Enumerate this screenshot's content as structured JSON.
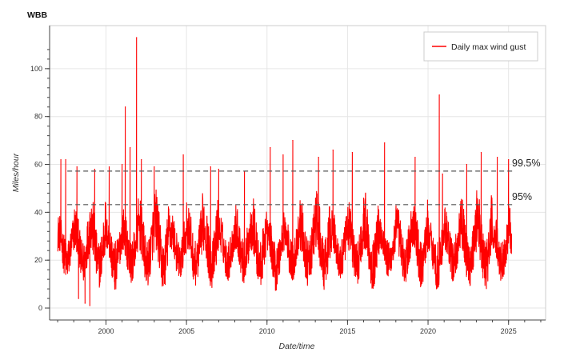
{
  "chart_data": {
    "type": "line",
    "title": "WBB",
    "xlabel": "Date/time",
    "ylabel": "Miles/hour",
    "xlim": [
      1996.5,
      2027.3
    ],
    "ylim": [
      -5,
      118
    ],
    "x_ticks": [
      2000,
      2005,
      2010,
      2015,
      2020,
      2025
    ],
    "y_ticks": [
      0,
      20,
      40,
      60,
      80,
      100
    ],
    "grid": true,
    "legend_position": "top-right",
    "series": [
      {
        "name": "Daily max wind gust",
        "color": "#ff0000",
        "x_start": 1997.0,
        "x_end": 2025.2,
        "seasonal_low_range": [
          7,
          12
        ],
        "seasonal_high_range": [
          38,
          52
        ],
        "peaks": [
          {
            "x": 1997.2,
            "y": 62
          },
          {
            "x": 1997.5,
            "y": 62
          },
          {
            "x": 1998.2,
            "y": 59
          },
          {
            "x": 1998.3,
            "y": 4
          },
          {
            "x": 1998.7,
            "y": 2
          },
          {
            "x": 1999.0,
            "y": 1
          },
          {
            "x": 1999.3,
            "y": 58
          },
          {
            "x": 2000.2,
            "y": 59
          },
          {
            "x": 2001.0,
            "y": 60
          },
          {
            "x": 2001.2,
            "y": 84
          },
          {
            "x": 2001.5,
            "y": 67
          },
          {
            "x": 2001.9,
            "y": 113
          },
          {
            "x": 2002.2,
            "y": 62
          },
          {
            "x": 2003.0,
            "y": 59
          },
          {
            "x": 2004.8,
            "y": 64
          },
          {
            "x": 2006.5,
            "y": 59
          },
          {
            "x": 2007.0,
            "y": 58
          },
          {
            "x": 2008.6,
            "y": 57
          },
          {
            "x": 2010.2,
            "y": 67
          },
          {
            "x": 2011.0,
            "y": 64
          },
          {
            "x": 2011.6,
            "y": 70
          },
          {
            "x": 2013.2,
            "y": 63
          },
          {
            "x": 2014.1,
            "y": 66
          },
          {
            "x": 2015.3,
            "y": 65
          },
          {
            "x": 2017.3,
            "y": 69
          },
          {
            "x": 2019.2,
            "y": 63
          },
          {
            "x": 2020.7,
            "y": 89
          },
          {
            "x": 2020.9,
            "y": 56
          },
          {
            "x": 2022.4,
            "y": 60
          },
          {
            "x": 2023.3,
            "y": 65
          },
          {
            "x": 2024.3,
            "y": 63
          },
          {
            "x": 2025.0,
            "y": 62
          }
        ]
      }
    ],
    "reference_lines": [
      {
        "label": "99.5%",
        "y": 57.2,
        "style": "dashed",
        "color": "#555555"
      },
      {
        "label": "95%",
        "y": 43.2,
        "style": "dashed",
        "color": "#555555"
      }
    ]
  }
}
